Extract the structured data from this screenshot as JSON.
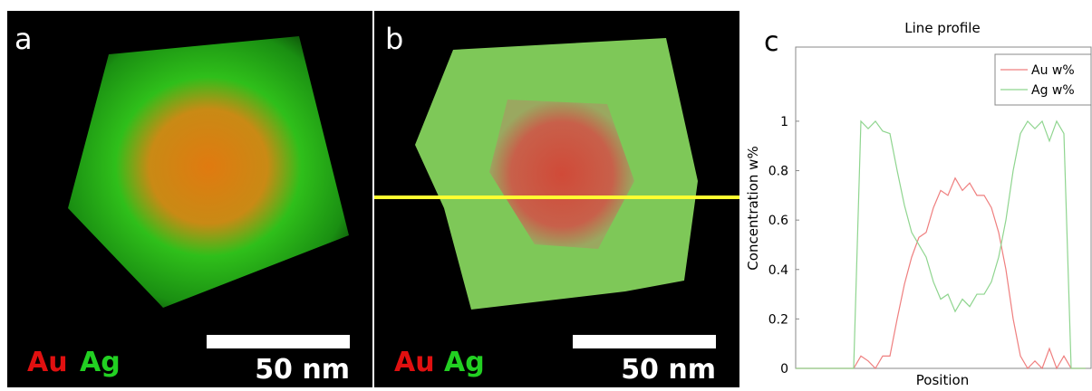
{
  "panels": [
    {
      "label": "a",
      "elements": [
        "Au",
        "Ag"
      ],
      "scale_bar": "50 nm"
    },
    {
      "label": "b",
      "elements": [
        "Au",
        "Ag"
      ],
      "scale_bar": "50 nm"
    }
  ],
  "chart_data": {
    "type": "line",
    "panel_label": "c",
    "title": "Line profile",
    "x_label": "Position",
    "y_label": "Concentration w%",
    "ylim": [
      0,
      1.3
    ],
    "yticks": [
      0,
      0.2,
      0.4,
      0.6,
      0.8,
      1
    ],
    "legend": "top-right",
    "series": [
      {
        "name": "Au w%",
        "color": "#ef7f7f",
        "values": [
          0,
          0,
          0,
          0,
          0,
          0,
          0,
          0,
          0,
          0.05,
          0.03,
          0,
          0.05,
          0.05,
          0.2,
          0.34,
          0.45,
          0.53,
          0.55,
          0.65,
          0.72,
          0.7,
          0.77,
          0.72,
          0.75,
          0.7,
          0.7,
          0.65,
          0.55,
          0.4,
          0.2,
          0.05,
          0,
          0.03,
          0,
          0.08,
          0,
          0.05,
          0,
          0,
          0
        ]
      },
      {
        "name": "Ag w%",
        "color": "#8fd58f",
        "values": [
          0,
          0,
          0,
          0,
          0,
          0,
          0,
          0,
          0,
          1,
          0.97,
          1,
          0.96,
          0.95,
          0.8,
          0.66,
          0.55,
          0.5,
          0.45,
          0.35,
          0.28,
          0.3,
          0.23,
          0.28,
          0.25,
          0.3,
          0.3,
          0.35,
          0.45,
          0.6,
          0.8,
          0.95,
          1,
          0.97,
          1,
          0.92,
          1,
          0.95,
          0,
          0,
          0
        ]
      }
    ]
  }
}
